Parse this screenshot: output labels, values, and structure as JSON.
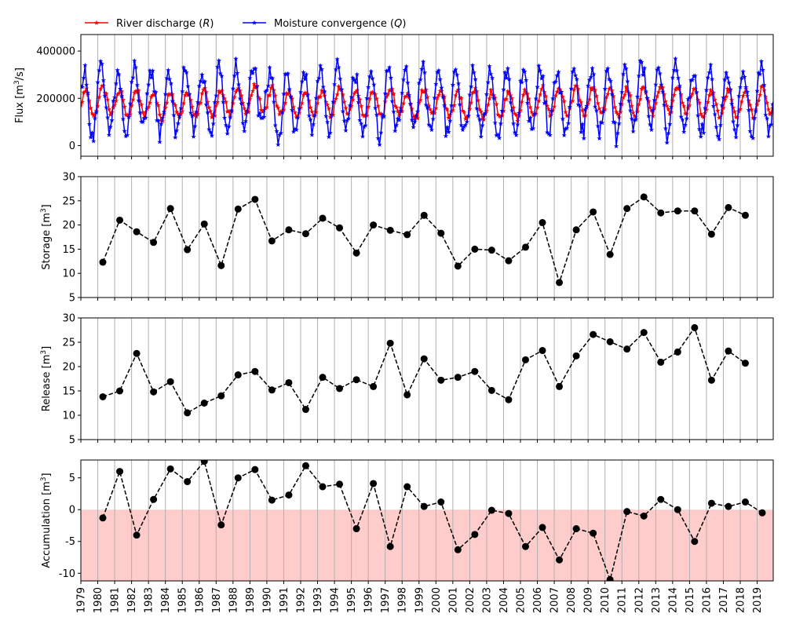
{
  "legend": {
    "items": [
      {
        "label": "River discharge (",
        "var": "R",
        "tail": ")",
        "color": "#ff0000"
      },
      {
        "label": "Moisture convergence (",
        "var": "Q",
        "tail": ")",
        "color": "#0000ff"
      }
    ]
  },
  "chart_data": [
    {
      "type": "line",
      "ylabel": "Flux [m³/s]",
      "ylim": [
        -45000,
        470000
      ],
      "yticks": [
        0,
        200000,
        400000
      ],
      "legend_position": "top-left",
      "series": [
        {
          "name": "River discharge (R)",
          "color": "#ff0000",
          "marker": "star",
          "x_start": 1979.0,
          "x_step": 0.08333,
          "annual_base": [
            180000,
            195000,
            178000,
            182000,
            170000,
            175000,
            172000,
            180000,
            185000,
            190000,
            200000,
            188000,
            175000,
            170000,
            182000,
            188000,
            175000,
            178000,
            190000,
            170000,
            185000,
            178000,
            172000,
            176000,
            174000,
            170000,
            178000,
            190000,
            192000,
            188000,
            195000,
            180000,
            185000,
            190000,
            192000,
            196000,
            185000,
            176000,
            182000,
            180000,
            188000
          ],
          "amplitude": 55000
        },
        {
          "name": "Moisture convergence (Q)",
          "color": "#0000ff",
          "marker": "star",
          "x_start": 1979.0,
          "x_step": 0.08333,
          "annual_base": [
            180000,
            190000,
            170000,
            200000,
            185000,
            180000,
            195000,
            175000,
            190000,
            200000,
            210000,
            170000,
            185000,
            180000,
            205000,
            195000,
            180000,
            175000,
            200000,
            190000,
            195000,
            185000,
            175000,
            180000,
            185000,
            175000,
            190000,
            200000,
            180000,
            195000,
            185000,
            170000,
            200000,
            215000,
            185000,
            210000,
            175000,
            180000,
            190000,
            185000,
            200000
          ],
          "amplitude": 135000
        }
      ]
    },
    {
      "type": "line",
      "ylabel": "Storage [m³]",
      "ylim": [
        5,
        30
      ],
      "yticks": [
        5,
        10,
        15,
        20,
        25,
        30
      ],
      "series": [
        {
          "color": "#000000",
          "style": "dashed",
          "marker": "circle",
          "x": [
            1980.3,
            1981.3,
            1982.3,
            1983.3,
            1984.3,
            1985.3,
            1986.3,
            1987.3,
            1988.3,
            1989.3,
            1990.3,
            1991.3,
            1992.3,
            1993.3,
            1994.3,
            1995.3,
            1996.3,
            1997.3,
            1998.3,
            1999.3,
            2000.3,
            2001.3,
            2002.3,
            2003.3,
            2004.3,
            2005.3,
            2006.3,
            2007.3,
            2008.3,
            2009.3,
            2010.3,
            2011.3,
            2012.3,
            2013.3,
            2014.3,
            2015.3,
            2016.3,
            2017.3,
            2018.3
          ],
          "y": [
            12.3,
            21.0,
            18.6,
            16.4,
            23.4,
            14.9,
            20.2,
            11.6,
            23.3,
            25.3,
            16.7,
            19.0,
            18.2,
            21.4,
            19.4,
            14.2,
            20.0,
            18.9,
            18.0,
            22.0,
            18.3,
            11.5,
            15.0,
            14.8,
            12.6,
            15.4,
            20.5,
            8.1,
            19.0,
            22.7,
            13.9,
            23.4,
            25.8,
            22.5,
            22.9,
            22.9,
            18.1,
            23.6,
            22.0
          ]
        }
      ]
    },
    {
      "type": "line",
      "ylabel": "Release [m³]",
      "ylim": [
        5,
        30
      ],
      "yticks": [
        5,
        10,
        15,
        20,
        25,
        30
      ],
      "series": [
        {
          "color": "#000000",
          "style": "dashed",
          "marker": "circle",
          "x": [
            1980.3,
            1981.3,
            1982.3,
            1983.3,
            1984.3,
            1985.3,
            1986.3,
            1987.3,
            1988.3,
            1989.3,
            1990.3,
            1991.3,
            1992.3,
            1993.3,
            1994.3,
            1995.3,
            1996.3,
            1997.3,
            1998.3,
            1999.3,
            2000.3,
            2001.3,
            2002.3,
            2003.3,
            2004.3,
            2005.3,
            2006.3,
            2007.3,
            2008.3,
            2009.3,
            2010.3,
            2011.3,
            2012.3,
            2013.3,
            2014.3,
            2015.3,
            2016.3,
            2017.3,
            2018.3
          ],
          "y": [
            13.8,
            15.0,
            22.7,
            14.8,
            16.9,
            10.5,
            12.5,
            14.0,
            18.3,
            19.0,
            15.2,
            16.7,
            11.2,
            17.8,
            15.5,
            17.3,
            15.9,
            24.8,
            14.2,
            21.6,
            17.2,
            17.8,
            19.0,
            15.1,
            13.2,
            21.4,
            23.3,
            15.9,
            22.2,
            26.6,
            25.1,
            23.6,
            27.0,
            20.9,
            23.0,
            28.0,
            17.2,
            23.2,
            20.7
          ]
        }
      ]
    },
    {
      "type": "line",
      "ylabel": "Accumulation [m³]",
      "ylim": [
        -11.2,
        7.8
      ],
      "yticks": [
        -10,
        -5,
        0,
        5
      ],
      "shaded_region": {
        "from": -11.2,
        "to": 0,
        "color": "#ffcccc"
      },
      "series": [
        {
          "color": "#000000",
          "style": "dashed",
          "marker": "circle",
          "x": [
            1980.3,
            1981.3,
            1982.3,
            1983.3,
            1984.3,
            1985.3,
            1986.3,
            1987.3,
            1988.3,
            1989.3,
            1990.3,
            1991.3,
            1992.3,
            1993.3,
            1994.3,
            1995.3,
            1996.3,
            1997.3,
            1998.3,
            1999.3,
            2000.3,
            2001.3,
            2002.3,
            2003.3,
            2004.3,
            2005.3,
            2006.3,
            2007.3,
            2008.3,
            2009.3,
            2010.3,
            2011.3,
            2012.3,
            2013.3,
            2014.3,
            2015.3,
            2016.3,
            2017.3,
            2018.3,
            2019.3
          ],
          "y": [
            -1.3,
            6.0,
            -4.0,
            1.6,
            6.4,
            4.4,
            7.6,
            -2.4,
            5.0,
            6.3,
            1.5,
            2.3,
            6.9,
            3.6,
            4.0,
            -3.0,
            4.1,
            -5.8,
            3.6,
            0.5,
            1.2,
            -6.3,
            -3.9,
            -0.1,
            -0.6,
            -5.8,
            -2.8,
            -7.9,
            -3.0,
            -3.7,
            -11.0,
            -0.3,
            -1.0,
            1.6,
            0.0,
            -5.0,
            1.0,
            0.5,
            1.2,
            -0.5
          ]
        }
      ]
    }
  ],
  "x_axis": {
    "xlim": [
      1979,
      2019.95
    ],
    "tick_labels": [
      "1979",
      "1980",
      "1981",
      "1982",
      "1983",
      "1984",
      "1985",
      "1986",
      "1987",
      "1988",
      "1989",
      "1990",
      "1991",
      "1992",
      "1993",
      "1994",
      "1995",
      "1996",
      "1997",
      "1998",
      "1999",
      "2000",
      "2001",
      "2002",
      "2003",
      "2004",
      "2005",
      "2006",
      "2007",
      "2008",
      "2009",
      "2010",
      "2011",
      "2012",
      "2013",
      "2014",
      "2015",
      "2016",
      "2017",
      "2018",
      "2019"
    ],
    "tick_values": [
      1979,
      1980,
      1981,
      1982,
      1983,
      1984,
      1985,
      1986,
      1987,
      1988,
      1989,
      1990,
      1991,
      1992,
      1993,
      1994,
      1995,
      1996,
      1997,
      1998,
      1999,
      2000,
      2001,
      2002,
      2003,
      2004,
      2005,
      2006,
      2007,
      2008,
      2009,
      2010,
      2011,
      2012,
      2013,
      2014,
      2015,
      2016,
      2017,
      2018,
      2019
    ],
    "vertical_gridlines": true
  }
}
